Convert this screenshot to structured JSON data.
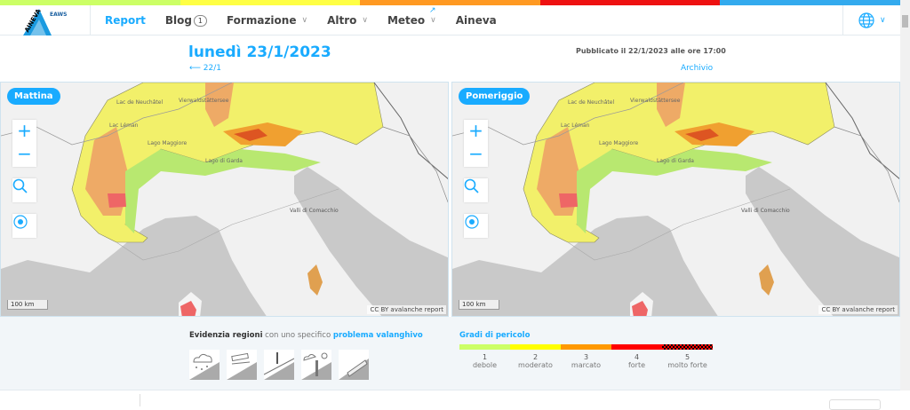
{
  "colors": {
    "accent": "#19abff",
    "level1": "#ccff66",
    "level2": "#ffff00",
    "level3": "#ff9900",
    "level4": "#ff0000",
    "level5": "#000000"
  },
  "topbar_colors": [
    "#ccff66",
    "#ffff00",
    "#ff9900",
    "#ff0000",
    "#19abff"
  ],
  "logo": {
    "text": "AINEVA",
    "eaws": "EAWS"
  },
  "nav": {
    "items": [
      {
        "label": "Report",
        "active": true
      },
      {
        "label": "Blog",
        "badge": "1"
      },
      {
        "label": "Formazione",
        "dropdown": true
      },
      {
        "label": "Altro",
        "dropdown": true
      },
      {
        "label": "Meteo",
        "dropdown": true
      },
      {
        "label": "Aineva",
        "external": true
      }
    ],
    "language_icon": "globe-icon"
  },
  "header": {
    "title": "lunedì 23/1/2023",
    "prev": "⟵ 22/1",
    "published": "Pubblicato il 22/1/2023 alle ore 17:00",
    "archive": "Archivio"
  },
  "maps": [
    {
      "label": "Mattina"
    },
    {
      "label": "Pomeriggio"
    }
  ],
  "map_labels": {
    "lake1": "Lac de Neuchâtel",
    "lake2": "Vierwaldstättersee",
    "lake3": "Lac Léman",
    "lake4": "Lago Maggiore",
    "lake5": "Lago di Garda",
    "lagoon": "Valli di Comacchio",
    "scale": "100 km",
    "attribution": "CC BY avalanche report"
  },
  "legend": {
    "highlight_bold": "Evidenzia regioni",
    "highlight_mid": " con uno specifico ",
    "highlight_link": "problema valanghivo",
    "problems": [
      "new-snow-icon",
      "wind-slab-icon",
      "persistent-weak-layer-icon",
      "wet-snow-icon",
      "gliding-snow-icon"
    ],
    "grades_title": "Gradi di pericolo",
    "grades": [
      {
        "n": "1",
        "label": "debole"
      },
      {
        "n": "2",
        "label": "moderato"
      },
      {
        "n": "3",
        "label": "marcato"
      },
      {
        "n": "4",
        "label": "forte"
      },
      {
        "n": "5",
        "label": "molto forte"
      }
    ]
  }
}
